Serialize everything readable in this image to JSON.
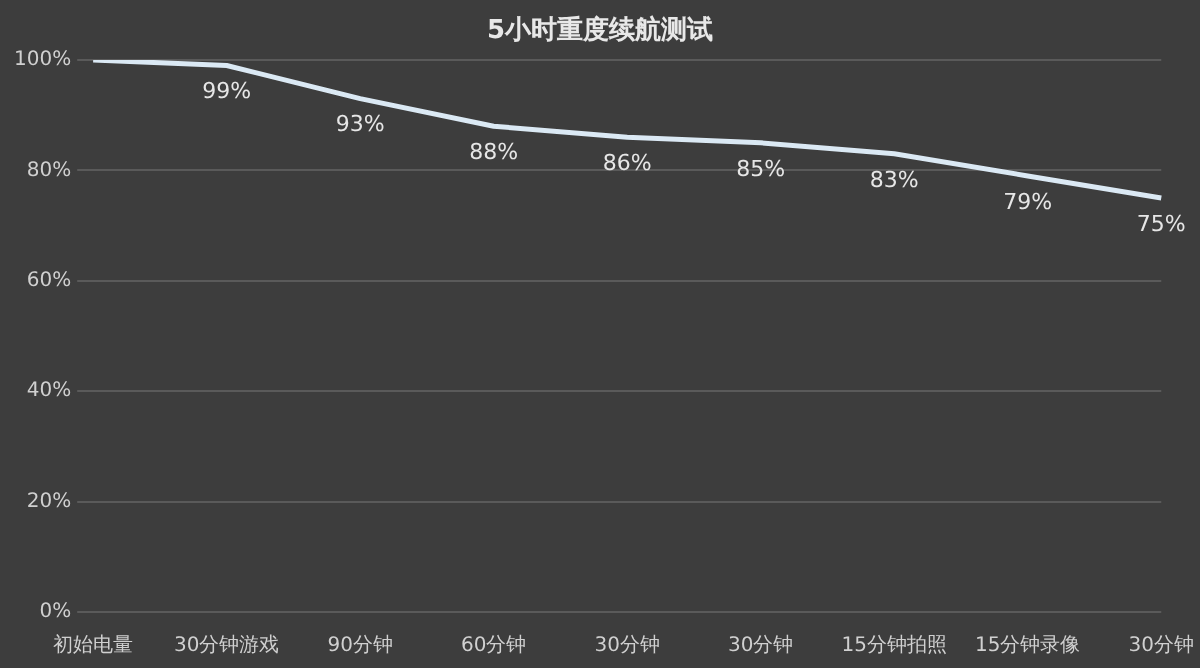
{
  "chart_data": {
    "type": "line",
    "title": "5小时重度续航测试",
    "categories": [
      "初始电量",
      "30分钟游戏",
      "90分钟",
      "60分钟",
      "30分钟",
      "30分钟",
      "15分钟拍照",
      "15分钟录像",
      "30分钟"
    ],
    "series": [
      {
        "color": "#dbe9f4",
        "values": [
          100,
          99,
          93,
          88,
          86,
          85,
          83,
          79,
          75
        ],
        "value_labels": [
          null,
          "99%",
          "93%",
          "88%",
          "86%",
          "85%",
          "83%",
          "79%",
          "75%"
        ]
      }
    ],
    "ylim": [
      0,
      100
    ],
    "yticks": [
      {
        "value": 0,
        "label": "0%"
      },
      {
        "value": 20,
        "label": "20%"
      },
      {
        "value": 40,
        "label": "40%"
      },
      {
        "value": 60,
        "label": "60%"
      },
      {
        "value": 80,
        "label": "80%"
      },
      {
        "value": 100,
        "label": "100%"
      }
    ],
    "grid": "y",
    "legend": false,
    "marker": "none",
    "line_style": "solid"
  }
}
